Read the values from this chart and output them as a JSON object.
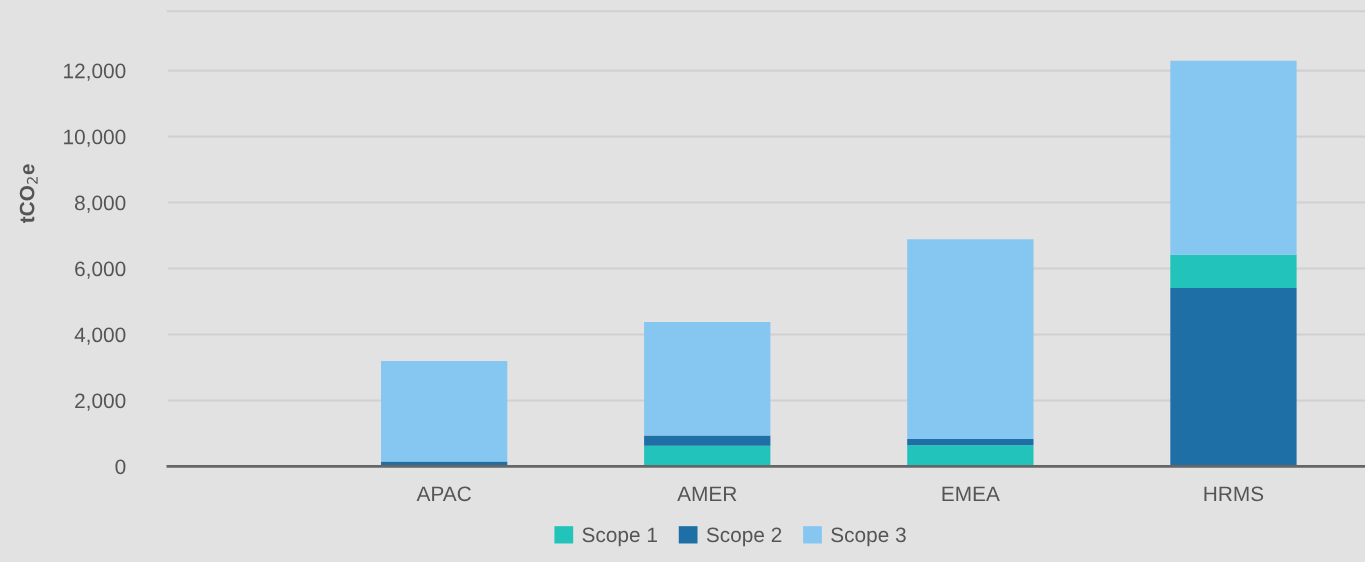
{
  "chart_data": {
    "type": "bar",
    "ylabel": "tCO$_{2}$e",
    "categories": [
      "APAC",
      "AMER",
      "EMEA",
      "HRMS"
    ],
    "series": [
      {
        "name": "Scope 1",
        "color": "#22c3bb",
        "values": [
          null,
          630,
          640,
          1010
        ],
        "base": [
          null,
          0,
          0,
          5410
        ]
      },
      {
        "name": "Scope 2",
        "color": "#1f6fa7",
        "values": [
          150,
          310,
          190,
          5410
        ],
        "base": [
          0,
          630,
          640,
          0
        ]
      },
      {
        "name": "Scope 3",
        "color": "#85c7f1",
        "values": [
          3050,
          3440,
          6060,
          5880
        ],
        "base": [
          150,
          940,
          830,
          6420
        ]
      }
    ],
    "ylim": [
      0,
      13800
    ],
    "yticks": [
      0,
      {
        "value": 2000,
        "label": "2,000"
      },
      {
        "value": 4000,
        "label": "4,000"
      },
      {
        "value": 6000,
        "label": "6,000"
      },
      {
        "value": 8000,
        "label": "8,000"
      },
      {
        "value": 10000,
        "label": "10,000"
      },
      {
        "value": 12000,
        "label": "12,000"
      }
    ],
    "grid": "y",
    "legend": "bottom"
  }
}
